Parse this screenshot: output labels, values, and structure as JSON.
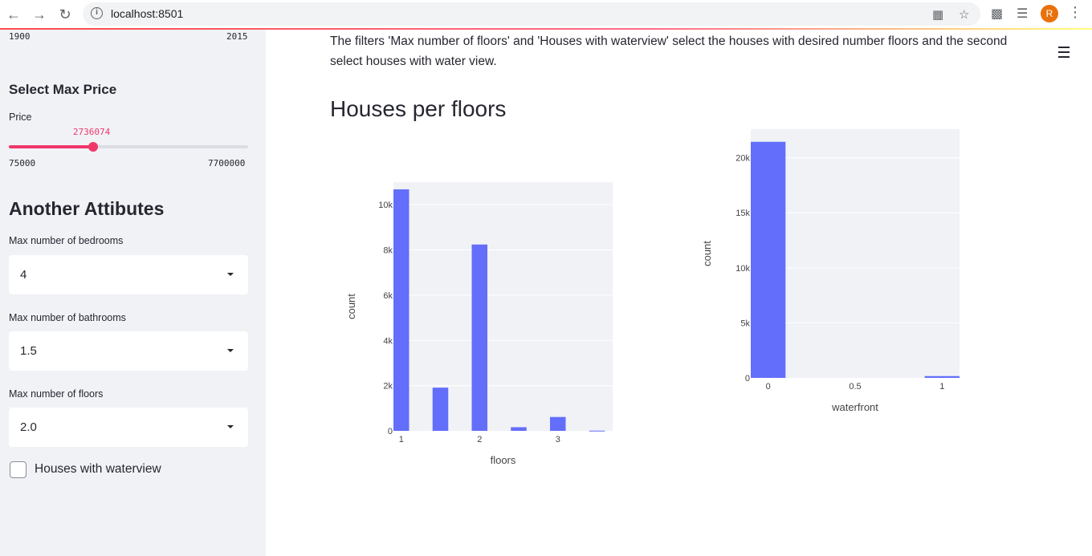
{
  "browser": {
    "url": "localhost:8501",
    "profile_initial": "R"
  },
  "sidebar": {
    "year_range": {
      "min_label": "1900",
      "max_label": "2015"
    },
    "price_section_title": "Select Max Price",
    "price_label": "Price",
    "price_value": "2736074",
    "price_min": "75000",
    "price_max": "7700000",
    "price_fraction": 0.3518,
    "attributes_title": "Another Attibutes",
    "bedrooms": {
      "label": "Max number of bedrooms",
      "value": "4"
    },
    "bathrooms": {
      "label": "Max number of bathrooms",
      "value": "1.5"
    },
    "floors": {
      "label": "Max number of floors",
      "value": "2.0"
    },
    "waterview": {
      "label": "Houses with waterview",
      "checked": false
    }
  },
  "main": {
    "description": "The filters 'Max number of floors' and 'Houses with waterview' select the houses with desired number floors and the second select houses with water view.",
    "title": "Houses per floors"
  },
  "colors": {
    "bar": "#636efa",
    "plot_bg": "#f0f2f6",
    "accent": "#f0386b"
  },
  "chart_data": [
    {
      "type": "bar",
      "xlabel": "floors",
      "ylabel": "count",
      "x": [
        1,
        1.5,
        2,
        2.5,
        3,
        3.5
      ],
      "values": [
        10680,
        1910,
        8241,
        161,
        613,
        8
      ],
      "xlim": [
        0.9,
        3.7
      ],
      "ylim": [
        0,
        11000
      ],
      "x_ticks": [
        1,
        2,
        3
      ],
      "x_tick_labels": [
        "1",
        "2",
        "3"
      ],
      "y_ticks": [
        0,
        2000,
        4000,
        6000,
        8000,
        10000
      ],
      "y_tick_labels": [
        "0",
        "2k",
        "4k",
        "6k",
        "8k",
        "10k"
      ],
      "bar_width": 0.2,
      "grid": true
    },
    {
      "type": "bar",
      "xlabel": "waterfront",
      "ylabel": "count",
      "x": [
        0,
        1
      ],
      "values": [
        21450,
        163
      ],
      "xlim": [
        -0.1,
        1.1
      ],
      "ylim": [
        0,
        22600
      ],
      "x_ticks": [
        0,
        0.5,
        1
      ],
      "x_tick_labels": [
        "0",
        "0.5",
        "1"
      ],
      "y_ticks": [
        0,
        5000,
        10000,
        15000,
        20000
      ],
      "y_tick_labels": [
        "0",
        "5k",
        "10k",
        "15k",
        "20k"
      ],
      "bar_width": 0.2,
      "grid": true
    }
  ]
}
